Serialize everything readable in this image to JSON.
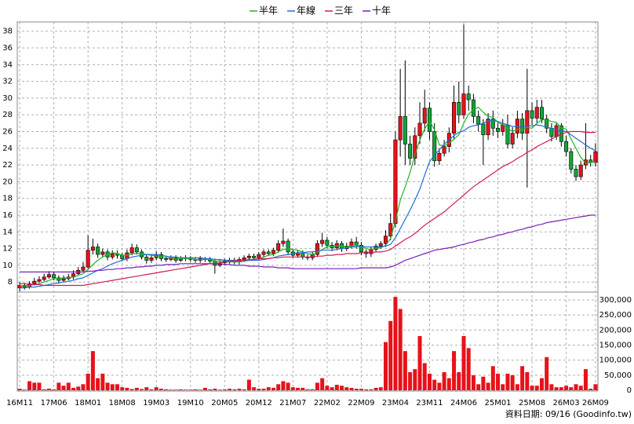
{
  "chart_data": {
    "type": "candlestick",
    "categories": [
      "16M11",
      null,
      null,
      null,
      null,
      null,
      null,
      "17M06",
      null,
      null,
      null,
      null,
      null,
      null,
      "18M01",
      null,
      null,
      null,
      null,
      null,
      null,
      "18M08",
      null,
      null,
      null,
      null,
      null,
      null,
      "19M03",
      null,
      null,
      null,
      null,
      null,
      null,
      "19M10",
      null,
      null,
      null,
      null,
      null,
      null,
      "20M05",
      null,
      null,
      null,
      null,
      null,
      null,
      "20M12",
      null,
      null,
      null,
      null,
      null,
      null,
      "21M07",
      null,
      null,
      null,
      null,
      null,
      null,
      "22M02",
      null,
      null,
      null,
      null,
      null,
      null,
      "22M09",
      null,
      null,
      null,
      null,
      null,
      null,
      "23M04",
      null,
      null,
      null,
      null,
      null,
      null,
      "23M11",
      null,
      null,
      null,
      null,
      null,
      null,
      "24M06",
      null,
      null,
      null,
      null,
      null,
      null,
      "25M01",
      null,
      null,
      null,
      null,
      null,
      null,
      "25M08",
      null,
      null,
      null,
      null,
      null,
      null,
      "26M03",
      null,
      null,
      null,
      null,
      null,
      "26M09"
    ],
    "open": [
      7.3,
      7.6,
      7.4,
      7.8,
      8.1,
      8.3,
      8.6,
      8.9,
      8.5,
      8.2,
      8.4,
      8.6,
      9.0,
      9.4,
      9.8,
      11.8,
      12.2,
      11.3,
      11.6,
      11.0,
      11.4,
      11.2,
      10.8,
      11.5,
      12.1,
      11.6,
      11.0,
      10.6,
      10.9,
      11.3,
      10.8,
      10.7,
      10.9,
      10.6,
      10.8,
      10.9,
      10.7,
      10.6,
      10.8,
      10.7,
      10.5,
      10.0,
      10.3,
      10.5,
      10.6,
      10.4,
      10.7,
      10.9,
      11.1,
      10.9,
      11.3,
      11.6,
      11.4,
      11.8,
      12.6,
      12.9,
      11.6,
      11.2,
      11.5,
      11.0,
      10.9,
      11.3,
      12.6,
      13.0,
      12.4,
      12.1,
      12.6,
      12.0,
      12.3,
      12.8,
      12.4,
      11.6,
      11.4,
      11.9,
      12.3,
      12.6,
      13.5,
      15.0,
      25.0,
      27.8,
      24.5,
      22.8,
      25.5,
      27.0,
      28.8,
      26.0,
      22.5,
      23.4,
      24.2,
      25.8,
      29.5,
      28.0,
      30.5,
      29.8,
      27.8,
      26.9,
      25.6,
      27.5,
      26.4,
      26.0,
      26.8,
      24.5,
      25.8,
      27.5,
      25.8,
      28.5,
      27.6,
      28.9,
      27.5,
      26.4,
      25.4,
      26.7,
      24.8,
      23.6,
      21.5,
      20.6,
      22.0,
      22.6,
      22.3
    ],
    "high": [
      8.0,
      7.9,
      8.1,
      8.5,
      8.7,
      9.0,
      9.3,
      9.2,
      8.8,
      8.8,
      9.0,
      9.4,
      9.8,
      10.4,
      13.6,
      13.2,
      12.6,
      12.0,
      11.9,
      11.8,
      11.8,
      11.5,
      11.9,
      12.6,
      12.5,
      11.9,
      11.3,
      11.3,
      11.7,
      11.6,
      11.1,
      11.2,
      11.2,
      11.1,
      11.2,
      11.1,
      11.0,
      11.1,
      11.0,
      11.0,
      10.8,
      10.7,
      10.8,
      10.9,
      10.9,
      11.0,
      11.2,
      11.4,
      11.4,
      11.6,
      11.9,
      11.9,
      12.1,
      13.0,
      14.4,
      13.2,
      11.9,
      11.8,
      11.8,
      11.3,
      11.6,
      13.0,
      13.9,
      13.4,
      12.8,
      13.0,
      12.9,
      12.7,
      13.2,
      13.4,
      12.8,
      11.9,
      12.2,
      12.6,
      12.9,
      14.2,
      16.2,
      26.0,
      33.5,
      34.5,
      25.5,
      26.5,
      29.5,
      31.0,
      29.5,
      27.0,
      24.0,
      25.0,
      26.5,
      31.5,
      32.0,
      38.8,
      31.5,
      30.5,
      28.5,
      27.5,
      28.2,
      28.5,
      27.0,
      27.5,
      28.0,
      26.5,
      28.5,
      28.2,
      33.5,
      29.5,
      29.8,
      29.8,
      28.0,
      27.0,
      27.0,
      27.0,
      25.5,
      24.0,
      22.0,
      22.5,
      27.0,
      23.2,
      24.6
    ],
    "low": [
      6.9,
      7.1,
      7.2,
      7.6,
      7.9,
      8.1,
      8.4,
      8.2,
      7.8,
      8.0,
      8.2,
      8.3,
      8.8,
      9.2,
      9.6,
      11.3,
      10.9,
      11.0,
      10.6,
      10.7,
      10.8,
      10.5,
      10.5,
      11.2,
      11.3,
      10.7,
      10.2,
      10.3,
      10.6,
      10.5,
      10.4,
      10.5,
      10.3,
      10.4,
      10.5,
      10.4,
      10.3,
      10.3,
      10.4,
      10.2,
      9.0,
      9.8,
      10.0,
      10.2,
      10.1,
      10.1,
      10.4,
      10.6,
      10.6,
      10.6,
      11.0,
      11.1,
      11.1,
      11.5,
      12.2,
      11.2,
      10.9,
      10.9,
      10.7,
      10.6,
      10.6,
      11.0,
      12.2,
      12.0,
      11.7,
      11.8,
      11.6,
      11.7,
      12.0,
      12.0,
      11.2,
      10.9,
      11.0,
      11.6,
      12.0,
      12.2,
      13.0,
      14.5,
      23.0,
      22.0,
      22.0,
      22.0,
      24.5,
      26.0,
      25.0,
      21.8,
      22.0,
      23.0,
      23.5,
      25.0,
      27.0,
      27.5,
      28.5,
      27.0,
      26.0,
      22.0,
      25.0,
      25.5,
      25.2,
      25.5,
      24.0,
      24.0,
      25.2,
      25.0,
      19.3,
      26.8,
      27.0,
      27.0,
      25.8,
      24.8,
      25.0,
      24.2,
      23.0,
      21.0,
      20.1,
      20.2,
      21.5,
      21.8,
      21.8
    ],
    "close": [
      7.6,
      7.4,
      7.8,
      8.1,
      8.3,
      8.6,
      8.9,
      8.5,
      8.2,
      8.4,
      8.6,
      9.0,
      9.4,
      9.8,
      11.8,
      12.2,
      11.3,
      11.6,
      11.0,
      11.4,
      11.2,
      10.8,
      11.5,
      12.1,
      11.6,
      11.0,
      10.6,
      10.9,
      11.3,
      10.8,
      10.7,
      10.9,
      10.6,
      10.8,
      10.9,
      10.7,
      10.6,
      10.8,
      10.7,
      10.5,
      10.0,
      10.3,
      10.5,
      10.6,
      10.4,
      10.7,
      10.9,
      11.1,
      10.9,
      11.3,
      11.6,
      11.4,
      11.8,
      12.6,
      12.9,
      11.6,
      11.2,
      11.5,
      11.0,
      10.9,
      11.3,
      12.6,
      13.0,
      12.4,
      12.1,
      12.6,
      12.0,
      12.3,
      12.8,
      12.4,
      11.6,
      11.4,
      11.9,
      12.3,
      12.6,
      13.5,
      15.0,
      25.0,
      27.8,
      24.5,
      22.8,
      25.5,
      27.0,
      28.8,
      26.0,
      22.5,
      23.4,
      24.2,
      25.8,
      29.5,
      28.0,
      30.5,
      29.8,
      27.8,
      26.9,
      25.6,
      27.5,
      26.4,
      26.0,
      26.8,
      24.5,
      25.8,
      27.5,
      25.8,
      28.5,
      27.6,
      28.9,
      27.5,
      26.4,
      25.4,
      26.7,
      24.8,
      23.6,
      21.5,
      20.6,
      22.0,
      22.6,
      22.3,
      23.6
    ],
    "up_color": "#e8111a",
    "down_color": "#13a538",
    "ylim": [
      6.8,
      39.1
    ],
    "yticks": [
      8,
      10,
      12,
      14,
      16,
      18,
      20,
      22,
      24,
      26,
      28,
      30,
      32,
      34,
      36,
      38
    ],
    "grid": true,
    "series": [
      {
        "name": "半年",
        "color": "#22b422",
        "values": [
          7.6,
          7.5,
          7.6,
          7.7,
          7.8,
          8.0,
          8.2,
          8.4,
          8.4,
          8.5,
          8.5,
          8.6,
          8.8,
          9.0,
          9.5,
          10.1,
          10.6,
          11.0,
          11.3,
          11.5,
          11.4,
          11.2,
          11.2,
          11.4,
          11.4,
          11.4,
          11.3,
          11.2,
          11.1,
          11.0,
          10.9,
          10.9,
          10.8,
          10.8,
          10.8,
          10.8,
          10.7,
          10.7,
          10.7,
          10.7,
          10.5,
          10.5,
          10.4,
          10.4,
          10.4,
          10.4,
          10.5,
          10.6,
          10.7,
          10.8,
          11.0,
          11.2,
          11.3,
          11.6,
          11.9,
          12.0,
          11.9,
          11.8,
          11.6,
          11.4,
          11.3,
          11.5,
          11.9,
          12.2,
          12.3,
          12.3,
          12.3,
          12.2,
          12.3,
          12.4,
          12.2,
          12.0,
          11.9,
          12.0,
          12.1,
          12.4,
          13.2,
          15.3,
          17.8,
          19.4,
          21.1,
          23.2,
          25.0,
          26.3,
          27.3,
          26.2,
          24.4,
          24.3,
          24.6,
          25.1,
          25.6,
          27.0,
          28.1,
          28.6,
          28.9,
          28.3,
          27.8,
          27.7,
          27.1,
          26.8,
          26.4,
          26.0,
          26.3,
          26.2,
          26.5,
          26.4,
          27.0,
          27.4,
          27.4,
          27.2,
          27.1,
          26.4,
          26.3,
          25.1,
          24.0,
          22.9,
          22.2,
          22.3,
          22.3
        ]
      },
      {
        "name": "年線",
        "color": "#1e6fd6",
        "values": [
          7.3,
          7.3,
          7.4,
          7.4,
          7.5,
          7.6,
          7.7,
          7.8,
          7.9,
          8.0,
          8.1,
          8.2,
          8.4,
          8.5,
          8.8,
          9.1,
          9.4,
          9.6,
          9.9,
          10.2,
          10.4,
          10.6,
          10.8,
          11.0,
          11.1,
          11.2,
          11.3,
          11.3,
          11.3,
          11.2,
          11.1,
          11.0,
          11.0,
          10.9,
          10.9,
          10.9,
          10.9,
          10.9,
          10.8,
          10.8,
          10.7,
          10.7,
          10.6,
          10.6,
          10.6,
          10.6,
          10.6,
          10.6,
          10.6,
          10.6,
          10.7,
          10.8,
          10.9,
          11.1,
          11.2,
          11.3,
          11.4,
          11.5,
          11.5,
          11.6,
          11.6,
          11.7,
          11.8,
          11.8,
          11.8,
          11.9,
          12.0,
          12.1,
          12.2,
          12.2,
          12.3,
          12.2,
          12.2,
          12.2,
          12.2,
          12.3,
          12.5,
          13.3,
          14.4,
          15.5,
          16.6,
          17.8,
          19.1,
          20.8,
          22.4,
          23.2,
          23.8,
          24.5,
          25.0,
          25.5,
          25.9,
          26.1,
          26.5,
          26.7,
          26.8,
          27.0,
          27.3,
          27.3,
          27.2,
          27.0,
          26.8,
          26.6,
          26.6,
          26.5,
          26.7,
          26.7,
          26.8,
          26.7,
          26.5,
          26.4,
          26.2,
          26.1,
          26.0,
          25.6,
          25.2,
          24.8,
          24.4,
          24.0,
          23.7
        ]
      },
      {
        "name": "三年",
        "color": "#d11b5a",
        "values": [
          7.8,
          7.8,
          7.7,
          7.7,
          7.7,
          7.6,
          7.6,
          7.6,
          7.6,
          7.6,
          7.6,
          7.6,
          7.6,
          7.6,
          7.7,
          7.8,
          7.9,
          8.0,
          8.1,
          8.2,
          8.3,
          8.4,
          8.5,
          8.6,
          8.7,
          8.8,
          8.9,
          9.0,
          9.1,
          9.2,
          9.3,
          9.4,
          9.5,
          9.6,
          9.7,
          9.8,
          9.9,
          10.0,
          10.1,
          10.2,
          10.2,
          10.3,
          10.4,
          10.5,
          10.5,
          10.6,
          10.6,
          10.7,
          10.7,
          10.8,
          10.8,
          10.8,
          10.9,
          10.9,
          11.0,
          11.0,
          11.0,
          11.0,
          11.0,
          11.0,
          11.0,
          11.1,
          11.1,
          11.2,
          11.2,
          11.3,
          11.3,
          11.4,
          11.4,
          11.4,
          11.5,
          11.5,
          11.5,
          11.6,
          11.6,
          11.7,
          11.9,
          12.3,
          12.7,
          13.1,
          13.4,
          13.8,
          14.3,
          14.8,
          15.2,
          15.6,
          16.0,
          16.4,
          16.9,
          17.4,
          17.9,
          18.4,
          18.9,
          19.4,
          19.8,
          20.2,
          20.6,
          21.0,
          21.4,
          21.8,
          22.1,
          22.4,
          22.8,
          23.1,
          23.5,
          23.8,
          24.2,
          24.5,
          24.8,
          25.1,
          25.4,
          25.7,
          25.9,
          26.0,
          26.0,
          26.0,
          25.9,
          25.9,
          25.9
        ]
      },
      {
        "name": "十年",
        "color": "#7a1fb8",
        "values": [
          9.2,
          9.2,
          9.2,
          9.2,
          9.2,
          9.2,
          9.2,
          9.2,
          9.2,
          9.2,
          9.2,
          9.2,
          9.2,
          9.2,
          9.3,
          9.3,
          9.4,
          9.4,
          9.5,
          9.5,
          9.6,
          9.6,
          9.7,
          9.7,
          9.8,
          9.8,
          9.9,
          9.9,
          10.0,
          10.0,
          10.1,
          10.1,
          10.1,
          10.2,
          10.2,
          10.2,
          10.2,
          10.2,
          10.2,
          10.2,
          10.2,
          10.2,
          10.1,
          10.1,
          10.0,
          10.0,
          10.0,
          9.9,
          9.9,
          9.9,
          9.8,
          9.8,
          9.8,
          9.7,
          9.7,
          9.7,
          9.6,
          9.6,
          9.6,
          9.6,
          9.6,
          9.6,
          9.6,
          9.6,
          9.6,
          9.6,
          9.6,
          9.6,
          9.6,
          9.6,
          9.7,
          9.7,
          9.7,
          9.7,
          9.7,
          9.7,
          9.8,
          10.0,
          10.3,
          10.6,
          10.8,
          11.0,
          11.2,
          11.4,
          11.6,
          11.8,
          11.9,
          12.0,
          12.1,
          12.2,
          12.4,
          12.5,
          12.7,
          12.8,
          13.0,
          13.1,
          13.3,
          13.4,
          13.6,
          13.7,
          13.9,
          14.0,
          14.2,
          14.3,
          14.5,
          14.6,
          14.8,
          14.9,
          15.1,
          15.2,
          15.3,
          15.4,
          15.5,
          15.6,
          15.7,
          15.8,
          15.9,
          16.0,
          16.0
        ]
      }
    ],
    "volume": {
      "type": "bar",
      "color": "#e8111a",
      "ylim": [
        0,
        326000
      ],
      "yticks": [
        0,
        {
          "value": 50000,
          "label": "50,000"
        },
        {
          "value": 100000,
          "label": "100,000"
        },
        {
          "value": 150000,
          "label": "150,000"
        },
        {
          "value": 200000,
          "label": "200,000"
        },
        {
          "value": 250000,
          "label": "250,000"
        },
        {
          "value": 300000,
          "label": "300,000"
        }
      ],
      "values": [
        5000,
        2000,
        30000,
        25000,
        25000,
        3000,
        5000,
        3000,
        25000,
        15000,
        25000,
        8000,
        12000,
        20000,
        55000,
        130000,
        40000,
        55000,
        25000,
        20000,
        20000,
        10000,
        8000,
        4000,
        8000,
        4000,
        10000,
        3000,
        10000,
        5000,
        3000,
        2000,
        2000,
        3000,
        2000,
        2000,
        3000,
        2000,
        8000,
        3000,
        5000,
        2000,
        3000,
        5000,
        3000,
        5000,
        3000,
        35000,
        10000,
        5000,
        5000,
        10000,
        8000,
        20000,
        30000,
        25000,
        10000,
        8000,
        8000,
        3000,
        3000,
        25000,
        40000,
        15000,
        10000,
        18000,
        15000,
        10000,
        8000,
        5000,
        5000,
        3000,
        3000,
        8000,
        10000,
        160000,
        230000,
        310000,
        270000,
        130000,
        60000,
        70000,
        180000,
        90000,
        55000,
        35000,
        25000,
        60000,
        40000,
        130000,
        60000,
        180000,
        140000,
        50000,
        20000,
        45000,
        25000,
        80000,
        55000,
        20000,
        55000,
        50000,
        20000,
        80000,
        60000,
        15000,
        15000,
        40000,
        110000,
        20000,
        10000,
        10000,
        15000,
        10000,
        20000,
        15000,
        70000,
        5000,
        20000
      ]
    },
    "source": "資料日期: 09/16 (Goodinfo.tw)"
  }
}
